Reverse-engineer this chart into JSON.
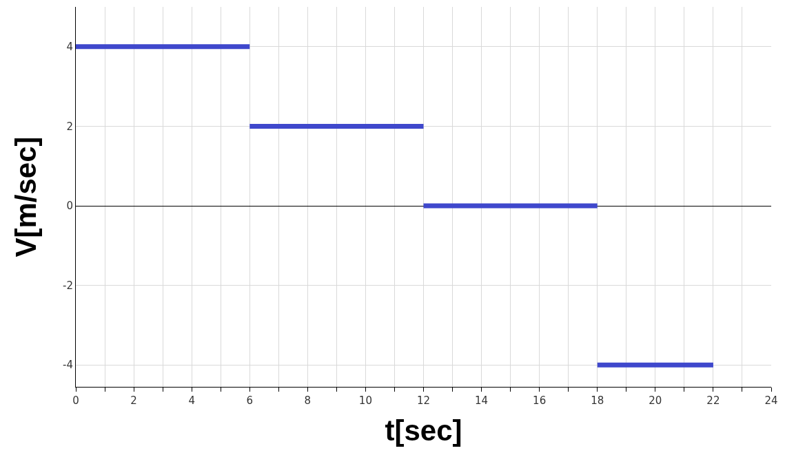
{
  "chart_data": {
    "type": "line",
    "xlabel": "t[sec]",
    "ylabel": "V[m/sec]",
    "series": [
      {
        "color": "#3f48cc",
        "x": [
          0,
          6
        ],
        "values": [
          4,
          4
        ]
      },
      {
        "color": "#3f48cc",
        "x": [
          6,
          12
        ],
        "values": [
          2,
          2
        ]
      },
      {
        "color": "#3f48cc",
        "x": [
          12,
          18
        ],
        "values": [
          0,
          0
        ]
      },
      {
        "color": "#3f48cc",
        "x": [
          18,
          22
        ],
        "values": [
          -4,
          -4
        ]
      }
    ],
    "xlim": [
      0,
      24
    ],
    "xticks": [
      0,
      {
        "value": 1,
        "label": null
      },
      2,
      {
        "value": 3,
        "label": null
      },
      4,
      {
        "value": 5,
        "label": null
      },
      6,
      {
        "value": 7,
        "label": null
      },
      8,
      {
        "value": 9,
        "label": null
      },
      10,
      {
        "value": 11,
        "label": null
      },
      12,
      {
        "value": 13,
        "label": null
      },
      14,
      {
        "value": 15,
        "label": null
      },
      16,
      {
        "value": 17,
        "label": null
      },
      18,
      {
        "value": 19,
        "label": null
      },
      20,
      {
        "value": 21,
        "label": null
      },
      22,
      {
        "value": 23,
        "label": null
      },
      24
    ],
    "ylim": [
      -4.55,
      5
    ],
    "yticks": [
      -4,
      -2,
      0,
      2,
      4
    ],
    "grid": true,
    "marker": "none",
    "line_style": "solid"
  }
}
